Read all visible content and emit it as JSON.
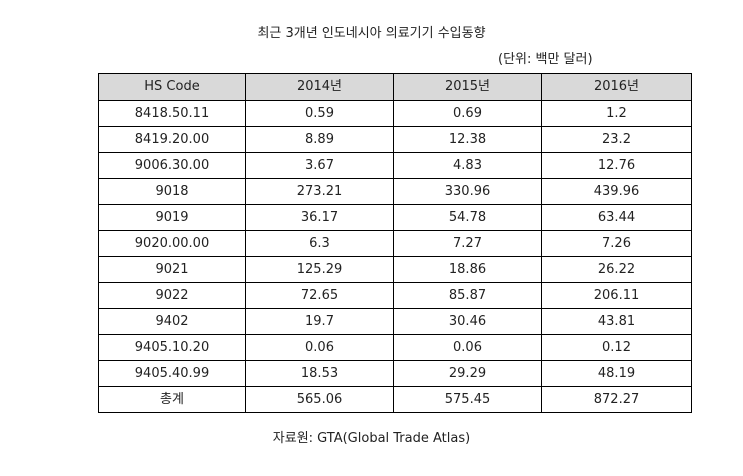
{
  "title": "최근 3개년 인도네시아 의료기기 수입동향",
  "unit": "(단위: 백만 달러)",
  "table": {
    "headers": [
      "HS Code",
      "2014년",
      "2015년",
      "2016년"
    ],
    "rows": [
      [
        "8418.50.11",
        "0.59",
        "0.69",
        "1.2"
      ],
      [
        "8419.20.00",
        "8.89",
        "12.38",
        "23.2"
      ],
      [
        "9006.30.00",
        "3.67",
        "4.83",
        "12.76"
      ],
      [
        "9018",
        "273.21",
        "330.96",
        "439.96"
      ],
      [
        "9019",
        "36.17",
        "54.78",
        "63.44"
      ],
      [
        "9020.00.00",
        "6.3",
        "7.27",
        "7.26"
      ],
      [
        "9021",
        "125.29",
        "18.86",
        "26.22"
      ],
      [
        "9022",
        "72.65",
        "85.87",
        "206.11"
      ],
      [
        "9402",
        "19.7",
        "30.46",
        "43.81"
      ],
      [
        "9405.10.20",
        "0.06",
        "0.06",
        "0.12"
      ],
      [
        "9405.40.99",
        "18.53",
        "29.29",
        "48.19"
      ],
      [
        "총계",
        "565.06",
        "575.45",
        "872.27"
      ]
    ]
  },
  "source": "자료원: GTA(Global Trade Atlas)"
}
